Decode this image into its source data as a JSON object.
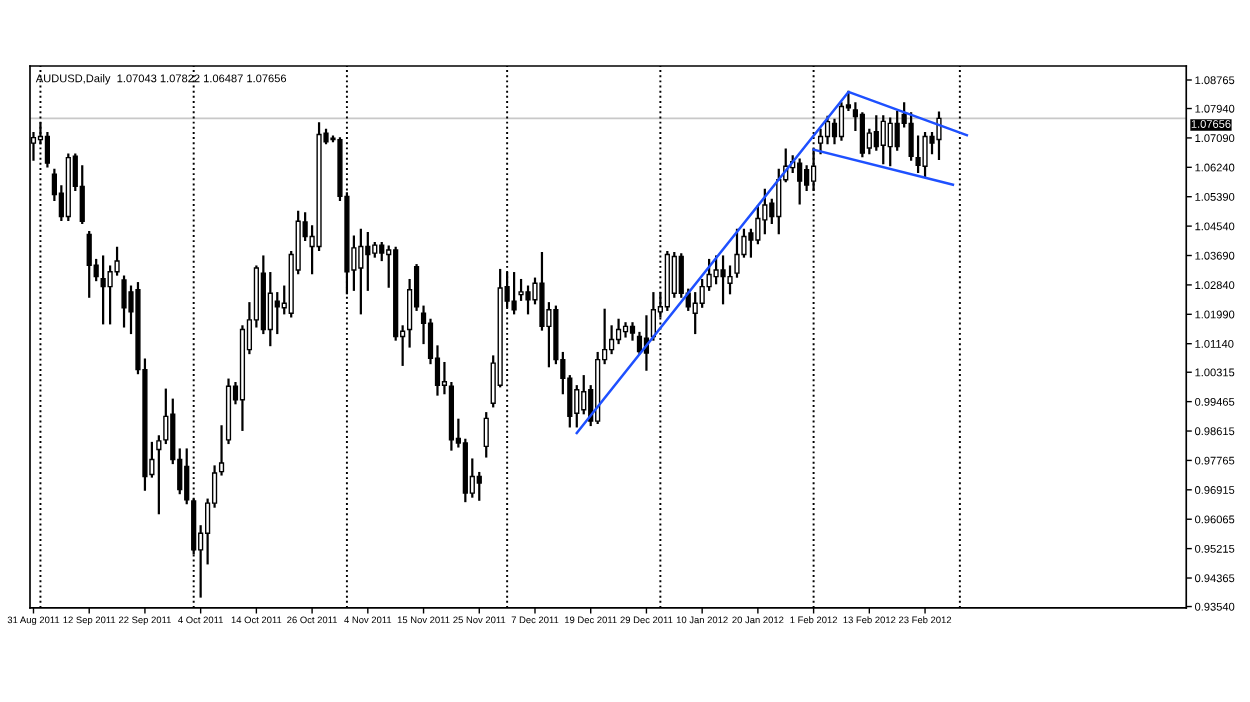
{
  "chart_data": {
    "type": "candlestick",
    "title": "AUDUSD,Daily  1.07043 1.07822 1.06487 1.07656",
    "categories": [
      "31 Aug 2011",
      null,
      null,
      null,
      null,
      null,
      null,
      null,
      "12 Sep 2011",
      null,
      null,
      null,
      null,
      null,
      null,
      null,
      "22 Sep 2011",
      null,
      null,
      null,
      null,
      null,
      null,
      null,
      "4 Oct 2011",
      null,
      null,
      null,
      null,
      null,
      null,
      null,
      "14 Oct 2011",
      null,
      null,
      null,
      null,
      null,
      null,
      null,
      "26 Oct 2011",
      null,
      null,
      null,
      null,
      null,
      null,
      null,
      "4 Nov 2011",
      null,
      null,
      null,
      null,
      null,
      null,
      null,
      "15 Nov 2011",
      null,
      null,
      null,
      null,
      null,
      null,
      null,
      "25 Nov 2011",
      null,
      null,
      null,
      null,
      null,
      null,
      null,
      "7 Dec 2011",
      null,
      null,
      null,
      null,
      null,
      null,
      null,
      "19 Dec 2011",
      null,
      null,
      null,
      null,
      null,
      null,
      null,
      "29 Dec 2011",
      null,
      null,
      null,
      null,
      null,
      null,
      null,
      "10 Jan 2012",
      null,
      null,
      null,
      null,
      null,
      null,
      null,
      "20 Jan 2012",
      null,
      null,
      null,
      null,
      null,
      null,
      null,
      "1 Feb 2012",
      null,
      null,
      null,
      null,
      null,
      null,
      null,
      "13 Feb 2012",
      null,
      null,
      null,
      null,
      null,
      null,
      null,
      "23 Feb 2012",
      null,
      null,
      null,
      null,
      null,
      null,
      null,
      null,
      null,
      null,
      null,
      null,
      null,
      null,
      null,
      null,
      null,
      null,
      null,
      null,
      null,
      null,
      null,
      null,
      null,
      null,
      null,
      null,
      null,
      null,
      null,
      null,
      null,
      null,
      null,
      null,
      null
    ],
    "ohlc": [
      [
        1.0694,
        1.0723,
        1.0646,
        1.071
      ],
      [
        1.0704,
        1.0751,
        1.0694,
        1.0713
      ],
      [
        1.0713,
        1.0723,
        1.0627,
        1.0636
      ],
      [
        1.0604,
        1.0617,
        1.053,
        1.0545
      ],
      [
        1.0549,
        1.0569,
        1.0472,
        1.0482
      ],
      [
        1.0482,
        1.0661,
        1.0472,
        1.0652
      ],
      [
        1.0656,
        1.0661,
        1.0559,
        1.0569
      ],
      [
        1.0569,
        1.0627,
        1.0463,
        1.0468
      ],
      [
        1.043,
        1.0437,
        1.025,
        1.0341
      ],
      [
        1.0341,
        1.0356,
        1.0298,
        1.0308
      ],
      [
        1.0302,
        1.0366,
        1.0173,
        1.0279
      ],
      [
        1.0279,
        1.0337,
        1.0173,
        1.0322
      ],
      [
        1.0322,
        1.0391,
        1.0314,
        1.0353
      ],
      [
        1.0298,
        1.0308,
        1.0164,
        1.0218
      ],
      [
        1.0264,
        1.0279,
        1.0145,
        1.0206
      ],
      [
        1.027,
        1.0289,
        1.0029,
        1.0039
      ],
      [
        1.0039,
        1.0068,
        0.9692,
        0.973
      ],
      [
        0.9736,
        0.9827,
        0.973,
        0.9779
      ],
      [
        0.9808,
        0.9846,
        0.9624,
        0.9833
      ],
      [
        0.9836,
        0.9981,
        0.9827,
        0.9904
      ],
      [
        0.991,
        0.9952,
        0.9769,
        0.9779
      ],
      [
        0.9779,
        0.9808,
        0.9682,
        0.9692
      ],
      [
        0.9759,
        0.9808,
        0.9653,
        0.9663
      ],
      [
        0.9659,
        0.9663,
        0.9508,
        0.9518
      ],
      [
        0.9518,
        0.9586,
        0.9383,
        0.9566
      ],
      [
        0.9566,
        0.9663,
        0.9479,
        0.9653
      ],
      [
        0.9653,
        0.9759,
        0.9643,
        0.974
      ],
      [
        0.9744,
        0.9875,
        0.9736,
        0.9769
      ],
      [
        0.9836,
        1.001,
        0.9827,
        0.9991
      ],
      [
        0.9991,
        1.0,
        0.9942,
        0.9952
      ],
      [
        0.9952,
        1.0164,
        0.9865,
        1.0155
      ],
      [
        1.0097,
        1.0231,
        1.0087,
        1.0183
      ],
      [
        1.0183,
        1.0337,
        1.0164,
        1.0333
      ],
      [
        1.0318,
        1.0366,
        1.0145,
        1.0155
      ],
      [
        1.0155,
        1.0318,
        1.011,
        1.026
      ],
      [
        1.0237,
        1.026,
        1.0145,
        1.0221
      ],
      [
        1.0218,
        1.0279,
        1.0202,
        1.0231
      ],
      [
        1.0202,
        1.0379,
        1.0193,
        1.0372
      ],
      [
        1.0327,
        1.0495,
        1.0318,
        1.0468
      ],
      [
        1.0466,
        1.0491,
        1.0414,
        1.0424
      ],
      [
        1.0395,
        1.0453,
        1.0318,
        1.0424
      ],
      [
        1.0395,
        1.0751,
        1.0385,
        1.0719
      ],
      [
        1.0723,
        1.0732,
        1.0694,
        1.0698
      ],
      [
        1.0704,
        1.0713,
        1.07,
        1.0708
      ],
      [
        1.0704,
        1.0708,
        1.053,
        1.054
      ],
      [
        1.054,
        1.0549,
        1.026,
        1.0322
      ],
      [
        1.0327,
        1.0424,
        1.027,
        1.0391
      ],
      [
        1.0333,
        1.0443,
        1.0202,
        1.0395
      ],
      [
        1.0395,
        1.0434,
        1.027,
        1.0372
      ],
      [
        1.0376,
        1.0405,
        1.0366,
        1.0399
      ],
      [
        1.0399,
        1.0405,
        1.0356,
        1.0376
      ],
      [
        1.0372,
        1.0395,
        1.0279,
        1.0385
      ],
      [
        1.0385,
        1.0391,
        1.0126,
        1.0135
      ],
      [
        1.0135,
        1.0164,
        1.0053,
        1.015
      ],
      [
        1.0155,
        1.0298,
        1.0106,
        1.027
      ],
      [
        1.0337,
        1.0341,
        1.0212,
        1.0221
      ],
      [
        1.0202,
        1.0221,
        1.0116,
        1.0173
      ],
      [
        1.0173,
        1.0183,
        1.0058,
        1.0072
      ],
      [
        1.0072,
        1.0106,
        0.9967,
        0.9994
      ],
      [
        0.9994,
        1.0058,
        0.9971,
        1.0004
      ],
      [
        0.9991,
        1.0,
        0.9808,
        0.9836
      ],
      [
        0.984,
        0.9894,
        0.9817,
        0.9827
      ],
      [
        0.9827,
        0.9836,
        0.9659,
        0.9682
      ],
      [
        0.9682,
        0.9779,
        0.9672,
        0.973
      ],
      [
        0.973,
        0.974,
        0.9663,
        0.9711
      ],
      [
        0.9817,
        0.9913,
        0.9788,
        0.9898
      ],
      [
        0.9942,
        1.0077,
        0.9933,
        1.0058
      ],
      [
        0.9994,
        1.0327,
        0.9991,
        1.0275
      ],
      [
        1.0279,
        1.0318,
        1.0221,
        1.0237
      ],
      [
        1.0237,
        1.0318,
        1.0202,
        1.0212
      ],
      [
        1.0256,
        1.0298,
        1.0241,
        1.0264
      ],
      [
        1.0264,
        1.0279,
        1.0202,
        1.0241
      ],
      [
        1.0241,
        1.0302,
        1.0231,
        1.0289
      ],
      [
        1.0289,
        1.0376,
        1.0155,
        1.0164
      ],
      [
        1.0164,
        1.0231,
        1.0049,
        1.0212
      ],
      [
        1.0212,
        1.0221,
        1.0058,
        1.0068
      ],
      [
        1.0068,
        1.0087,
        0.9971,
        1.0014
      ],
      [
        1.0014,
        1.002,
        0.9875,
        0.9904
      ],
      [
        0.9913,
        0.9991,
        0.9875,
        0.9981
      ],
      [
        0.9923,
        1.002,
        0.9913,
        0.9975
      ],
      [
        0.9981,
        0.9991,
        0.9879,
        0.989
      ],
      [
        0.989,
        1.0087,
        0.9885,
        1.0068
      ],
      [
        1.0068,
        1.0212,
        1.0058,
        1.0097
      ],
      [
        1.0097,
        1.0164,
        1.0087,
        1.0126
      ],
      [
        1.0126,
        1.0183,
        1.0116,
        1.0155
      ],
      [
        1.0149,
        1.0173,
        1.0135,
        1.0164
      ],
      [
        1.0164,
        1.0173,
        1.0126,
        1.0145
      ],
      [
        1.0135,
        1.0145,
        1.0087,
        1.0091
      ],
      [
        1.013,
        1.0193,
        1.0039,
        1.0087
      ],
      [
        1.0135,
        1.026,
        1.0126,
        1.0212
      ],
      [
        1.0206,
        1.026,
        1.0193,
        1.0221
      ],
      [
        1.0221,
        1.0379,
        1.0212,
        1.0372
      ],
      [
        1.026,
        1.0376,
        1.025,
        1.0366
      ],
      [
        1.0366,
        1.0372,
        1.025,
        1.026
      ],
      [
        1.026,
        1.027,
        1.0212,
        1.0221
      ],
      [
        1.0202,
        1.026,
        1.0145,
        1.0231
      ],
      [
        1.0231,
        1.0298,
        1.0221,
        1.0279
      ],
      [
        1.0279,
        1.0356,
        1.027,
        1.0314
      ],
      [
        1.0308,
        1.0366,
        1.0289,
        1.0327
      ],
      [
        1.0327,
        1.0366,
        1.0231,
        1.0308
      ],
      [
        1.0289,
        1.0337,
        1.026,
        1.0308
      ],
      [
        1.0318,
        1.0443,
        1.0308,
        1.0372
      ],
      [
        1.0372,
        1.0443,
        1.0366,
        1.0424
      ],
      [
        1.0434,
        1.0443,
        1.0366,
        1.0414
      ],
      [
        1.0414,
        1.0511,
        1.0405,
        1.0476
      ],
      [
        1.0472,
        1.0559,
        1.0434,
        1.0515
      ],
      [
        1.052,
        1.053,
        1.0463,
        1.0482
      ],
      [
        1.0482,
        1.0617,
        1.0434,
        1.0588
      ],
      [
        1.0588,
        1.0675,
        1.0584,
        1.0627
      ],
      [
        1.0623,
        1.0656,
        1.0611,
        1.064
      ],
      [
        1.0636,
        1.0646,
        1.052,
        1.0584
      ],
      [
        1.0617,
        1.0627,
        1.0559,
        1.0573
      ],
      [
        1.0584,
        1.0675,
        1.0559,
        1.0627
      ],
      [
        1.0694,
        1.0732,
        1.0665,
        1.0713
      ],
      [
        1.0713,
        1.077,
        1.0694,
        1.0756
      ],
      [
        1.0751,
        1.0761,
        1.0694,
        1.0713
      ],
      [
        1.0713,
        1.0809,
        1.0704,
        1.08
      ],
      [
        1.0804,
        1.0842,
        1.079,
        1.0796
      ],
      [
        1.079,
        1.0809,
        1.0732,
        1.0771
      ],
      [
        1.0777,
        1.078,
        1.0656,
        1.0665
      ],
      [
        1.068,
        1.0732,
        1.0665,
        1.0723
      ],
      [
        1.0727,
        1.0771,
        1.0675,
        1.0684
      ],
      [
        1.0688,
        1.0771,
        1.0636,
        1.0757
      ],
      [
        1.0684,
        1.0765,
        1.063,
        1.0751
      ],
      [
        1.0751,
        1.0784,
        1.0675,
        1.0684
      ],
      [
        1.0777,
        1.0809,
        1.0742,
        1.0751
      ],
      [
        1.0751,
        1.078,
        1.0646,
        1.0656
      ],
      [
        1.0652,
        1.0713,
        1.0611,
        1.063
      ],
      [
        1.0627,
        1.0723,
        1.0598,
        1.0713
      ],
      [
        1.0713,
        1.0723,
        1.0665,
        1.0694
      ],
      [
        1.07043,
        1.07822,
        1.06487,
        1.07656
      ],
      null,
      null,
      null,
      null,
      null,
      null,
      null,
      null,
      null,
      null,
      null,
      null,
      null,
      null,
      null,
      null,
      null,
      null,
      null,
      null,
      null,
      null,
      null,
      null,
      null,
      null,
      null,
      null,
      null,
      null,
      null,
      null,
      null,
      null,
      null
    ],
    "series": [
      {
        "type": "line",
        "color": "#1e50ff",
        "values": [
          null,
          null,
          null,
          null,
          null,
          null,
          null,
          null,
          null,
          null,
          null,
          null,
          null,
          null,
          null,
          null,
          null,
          null,
          null,
          null,
          null,
          null,
          null,
          null,
          null,
          null,
          null,
          null,
          null,
          null,
          null,
          null,
          null,
          null,
          null,
          null,
          null,
          null,
          null,
          null,
          null,
          null,
          null,
          null,
          null,
          null,
          null,
          null,
          null,
          null,
          null,
          null,
          null,
          null,
          null,
          null,
          null,
          null,
          null,
          null,
          null,
          null,
          null,
          null,
          null,
          null,
          null,
          null,
          null,
          null,
          null,
          null,
          null,
          null,
          null,
          null,
          null,
          null,
          0.9856,
          null,
          null,
          null,
          null,
          null,
          null,
          null,
          null,
          null,
          null,
          null,
          null,
          null,
          null,
          null,
          null,
          null,
          null,
          null,
          null,
          null,
          null,
          null,
          null,
          null,
          null,
          null,
          null,
          null,
          null,
          null,
          null,
          null,
          null,
          null,
          null,
          null,
          null,
          1.0842,
          null,
          null,
          null,
          null,
          null,
          null,
          null,
          null,
          null,
          null,
          null,
          null,
          null,
          null,
          null,
          null,
          1.0717,
          null,
          null,
          null,
          null,
          null,
          null,
          null,
          null,
          null,
          null,
          null,
          null,
          null,
          null,
          null,
          null,
          null,
          null,
          null,
          null,
          null,
          null,
          null,
          null,
          null,
          null,
          null,
          null,
          null,
          null,
          null
        ]
      },
      {
        "type": "line",
        "color": "#1e50ff",
        "values": [
          null,
          null,
          null,
          null,
          null,
          null,
          null,
          null,
          null,
          null,
          null,
          null,
          null,
          null,
          null,
          null,
          null,
          null,
          null,
          null,
          null,
          null,
          null,
          null,
          null,
          null,
          null,
          null,
          null,
          null,
          null,
          null,
          null,
          null,
          null,
          null,
          null,
          null,
          null,
          null,
          null,
          null,
          null,
          null,
          null,
          null,
          null,
          null,
          null,
          null,
          null,
          null,
          null,
          null,
          null,
          null,
          null,
          null,
          null,
          null,
          null,
          null,
          null,
          null,
          null,
          null,
          null,
          null,
          null,
          null,
          null,
          null,
          null,
          null,
          null,
          null,
          null,
          null,
          null,
          null,
          null,
          null,
          null,
          null,
          null,
          null,
          null,
          null,
          null,
          null,
          null,
          null,
          null,
          null,
          null,
          null,
          null,
          null,
          null,
          null,
          null,
          null,
          null,
          null,
          null,
          null,
          null,
          null,
          null,
          null,
          null,
          null,
          1.0675,
          null,
          null,
          null,
          null,
          null,
          null,
          null,
          null,
          null,
          null,
          null,
          null,
          null,
          null,
          null,
          null,
          null,
          null,
          null,
          1.0574,
          null,
          null,
          null,
          null,
          null,
          null,
          null,
          null,
          null,
          null,
          null,
          null,
          null,
          null,
          null,
          null,
          null,
          null,
          null,
          null,
          null,
          null,
          null,
          null,
          null,
          null,
          null,
          null,
          null,
          null,
          null,
          null,
          null
        ]
      }
    ],
    "ref_lines": [
      {
        "axis": "y",
        "value": 1.07656,
        "label": "1.07656",
        "color": "#c8c8c8",
        "line_style": "solid"
      }
    ],
    "ylim": [
      0.935,
      1.0917
    ],
    "yticks": [
      {
        "value": 1.08765,
        "label": "1.08765"
      },
      {
        "value": 1.0794,
        "label": "1.07940"
      },
      {
        "value": 1.0709,
        "label": "1.07090"
      },
      {
        "value": 1.0624,
        "label": "1.06240"
      },
      {
        "value": 1.0539,
        "label": "1.05390"
      },
      {
        "value": 1.0454,
        "label": "1.04540"
      },
      {
        "value": 1.0369,
        "label": "1.03690"
      },
      {
        "value": 1.0284,
        "label": "1.02840"
      },
      {
        "value": 1.0199,
        "label": "1.01990"
      },
      {
        "value": 1.0114,
        "label": "1.01140"
      },
      {
        "value": 1.00315,
        "label": "1.00315"
      },
      {
        "value": 0.99465,
        "label": "0.99465"
      },
      {
        "value": 0.98615,
        "label": "0.98615"
      },
      {
        "value": 0.97765,
        "label": "0.97765"
      },
      {
        "value": 0.96915,
        "label": "0.96915"
      },
      {
        "value": 0.96065,
        "label": "0.96065"
      },
      {
        "value": 0.95215,
        "label": "0.95215"
      },
      {
        "value": 0.94365,
        "label": "0.94365"
      },
      {
        "value": 0.9354,
        "label": "0.93540"
      }
    ]
  }
}
